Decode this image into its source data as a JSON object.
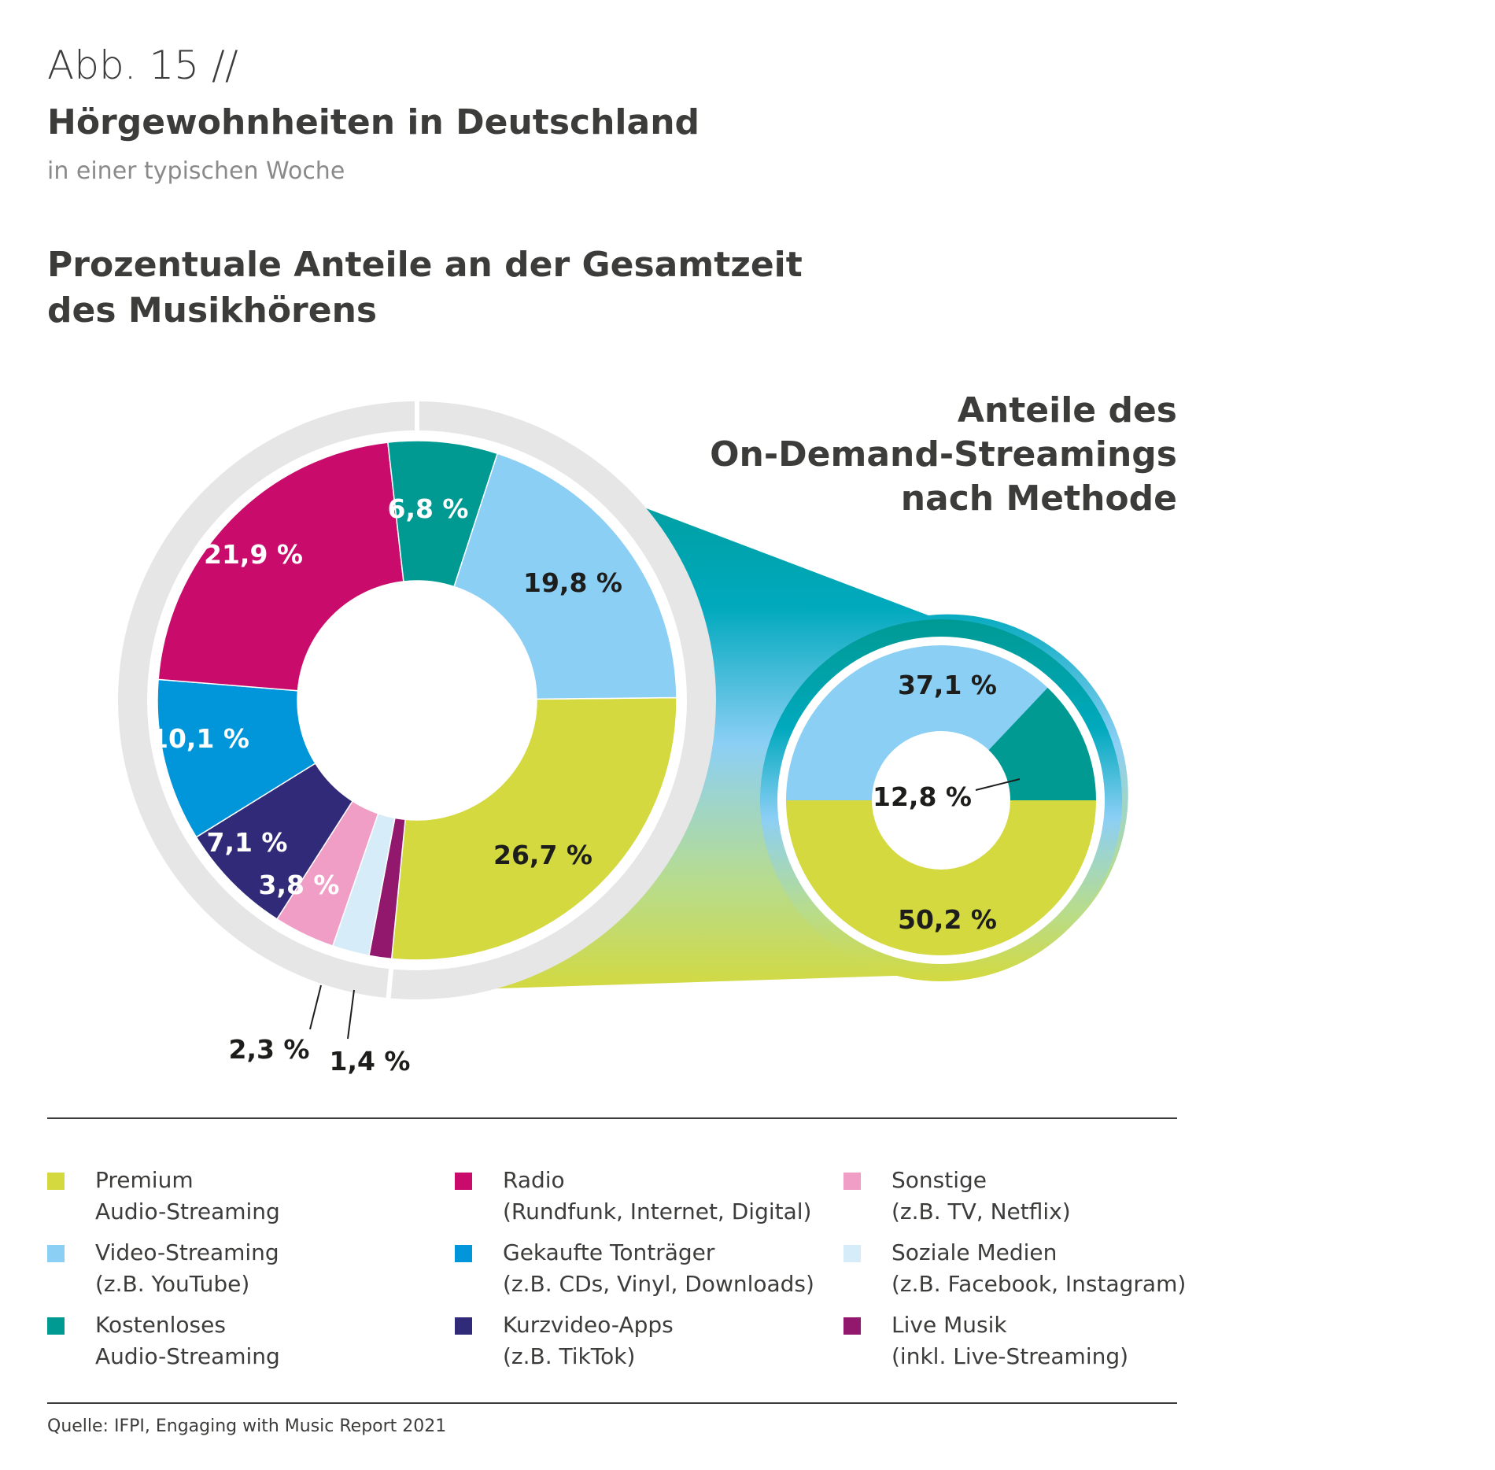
{
  "header": {
    "figure_number": "Abb. 15 //",
    "title": "Hörgewohnheiten in Deutschland",
    "subtitle": "in einer typischen Woche"
  },
  "chart_heading": {
    "line1": "Prozentuale Anteile an der Gesamtzeit",
    "line2": "des Musikhörens"
  },
  "right_heading": {
    "line1": "Anteile des",
    "line2": "On-Demand-Streamings",
    "line3": "nach Methode"
  },
  "colors": {
    "premium_audio": "#d3d93f",
    "video_streaming": "#8ccff5",
    "free_audio": "#009a93",
    "radio": "#c90c6b",
    "purchased": "#0096d9",
    "short_video": "#312a78",
    "other": "#f19ec7",
    "social_media": "#d6ecf9",
    "live_music": "#91186d",
    "ring_gray": "#e6e6e6"
  },
  "chart_data": [
    {
      "type": "pie",
      "name": "Prozentuale Anteile an der Gesamtzeit des Musikhörens",
      "unit": "%",
      "slices": [
        {
          "key": "premium_audio",
          "label": "26,7 %",
          "value": 26.7,
          "color": "#d3d93f",
          "label_color": "#1d1d1b"
        },
        {
          "key": "live_music",
          "label": "1,4 %",
          "value": 1.4,
          "color": "#91186d",
          "label_color": "#1d1d1b"
        },
        {
          "key": "social_media",
          "label": "2,3 %",
          "value": 2.3,
          "color": "#d6ecf9",
          "label_color": "#1d1d1b"
        },
        {
          "key": "other",
          "label": "3,8 %",
          "value": 3.8,
          "color": "#f19ec7",
          "label_color": "#ffffff"
        },
        {
          "key": "short_video",
          "label": "7,1 %",
          "value": 7.1,
          "color": "#312a78",
          "label_color": "#ffffff"
        },
        {
          "key": "purchased",
          "label": "10,1 %",
          "value": 10.1,
          "color": "#0096d9",
          "label_color": "#ffffff"
        },
        {
          "key": "radio",
          "label": "21,9 %",
          "value": 21.9,
          "color": "#c90c6b",
          "label_color": "#ffffff"
        },
        {
          "key": "free_audio",
          "label": "6,8 %",
          "value": 6.8,
          "color": "#009a93",
          "label_color": "#ffffff"
        },
        {
          "key": "video_streaming",
          "label": "19,8 %",
          "value": 19.8,
          "color": "#8ccff5",
          "label_color": "#1d1d1b"
        }
      ]
    },
    {
      "type": "pie",
      "name": "Anteile des On-Demand-Streamings nach Methode",
      "unit": "%",
      "slices": [
        {
          "key": "premium_audio",
          "label": "50,2 %",
          "value": 50.2,
          "color": "#d3d93f",
          "label_color": "#1d1d1b"
        },
        {
          "key": "video_streaming",
          "label": "37,1 %",
          "value": 37.1,
          "color": "#8ccff5",
          "label_color": "#1d1d1b"
        },
        {
          "key": "free_audio",
          "label": "12,8 %",
          "value": 12.8,
          "color": "#009a93",
          "label_color": "#1d1d1b"
        }
      ]
    }
  ],
  "legend": [
    {
      "key": "premium_audio",
      "line1": "Premium",
      "line2": "Audio-Streaming",
      "color": "#d3d93f"
    },
    {
      "key": "video_streaming",
      "line1": "Video-Streaming",
      "line2": "(z.B. YouTube)",
      "color": "#8ccff5"
    },
    {
      "key": "free_audio",
      "line1": "Kostenloses",
      "line2": "Audio-Streaming",
      "color": "#009a93"
    },
    {
      "key": "radio",
      "line1": "Radio",
      "line2": "(Rundfunk, Internet, Digital)",
      "color": "#c90c6b"
    },
    {
      "key": "purchased",
      "line1": "Gekaufte Tonträger",
      "line2": "(z.B. CDs, Vinyl, Downloads)",
      "color": "#0096d9"
    },
    {
      "key": "short_video",
      "line1": "Kurzvideo-Apps",
      "line2": "(z.B. TikTok)",
      "color": "#312a78"
    },
    {
      "key": "other",
      "line1": "Sonstige",
      "line2": "(z.B. TV, Netflix)",
      "color": "#f19ec7"
    },
    {
      "key": "social_media",
      "line1": "Soziale Medien",
      "line2": "(z.B. Facebook, Instagram)",
      "color": "#d6ecf9"
    },
    {
      "key": "live_music",
      "line1": "Live Musik",
      "line2": "(inkl. Live-Streaming)",
      "color": "#91186d"
    }
  ],
  "source": "Quelle: IFPI, Engaging with Music Report 2021"
}
